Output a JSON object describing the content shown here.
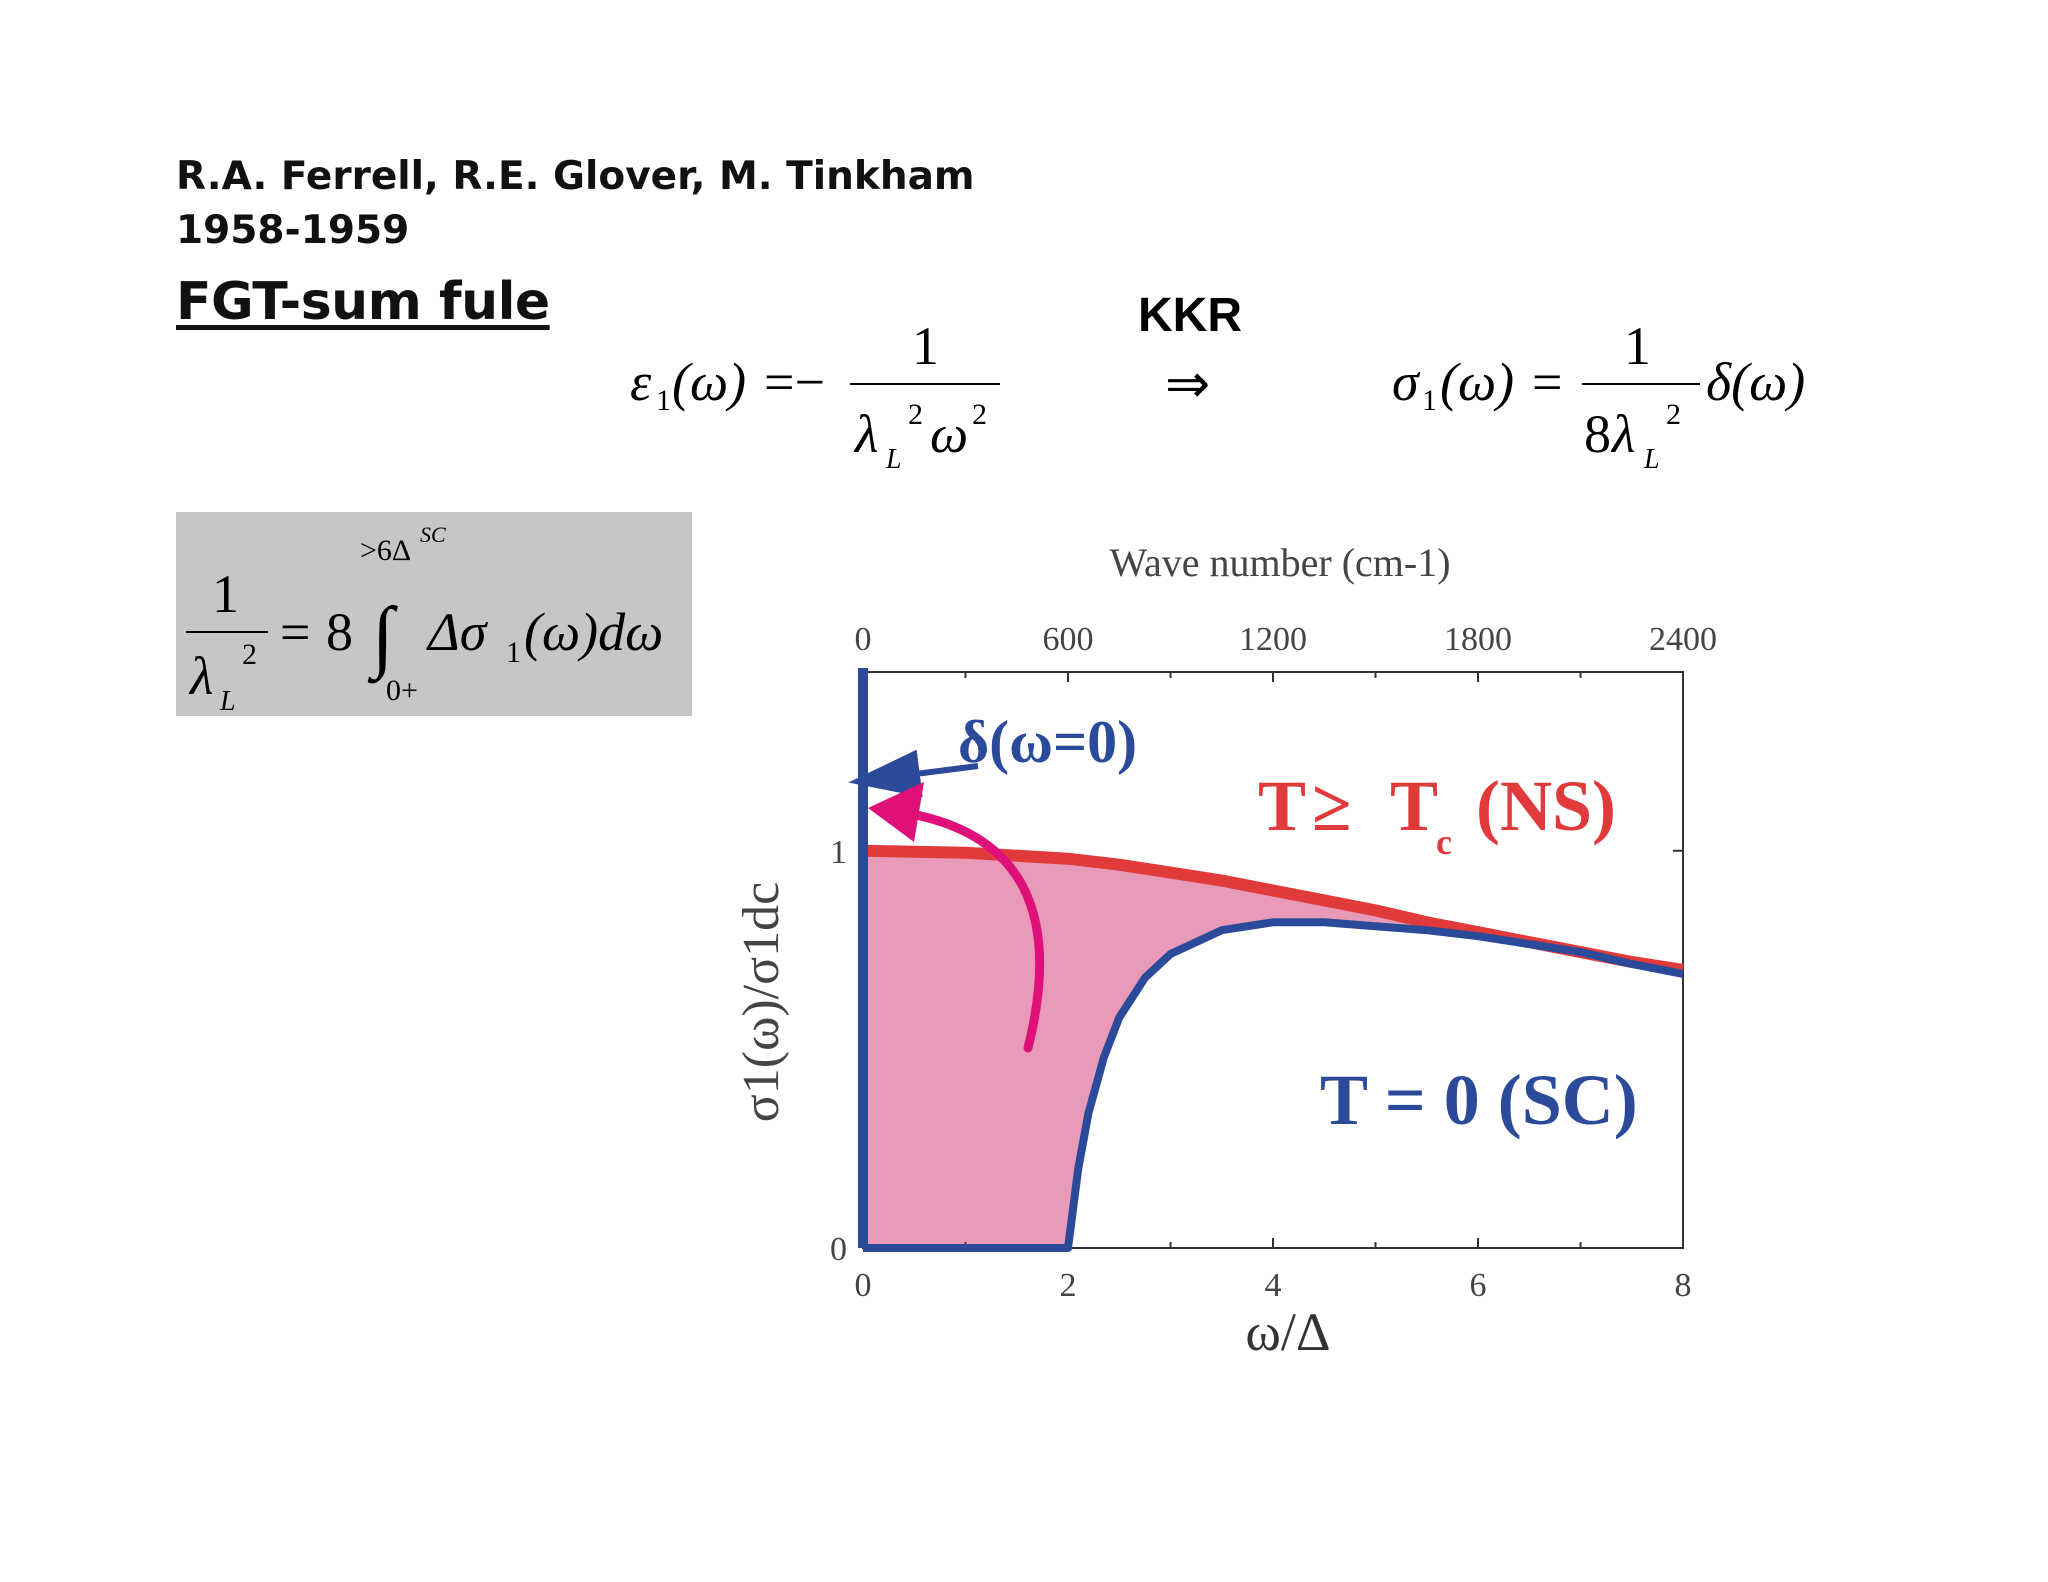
{
  "header": {
    "authors": "R.A. Ferrell, R.E. Glover, M. Tinkham",
    "years": "1958-1959",
    "rule_title": "FGT-sum fule"
  },
  "equations": {
    "kkr_label": "KKR",
    "implies": "⇒",
    "eq1": {
      "lhs_eps": "ε",
      "sub": "1",
      "arg": "(ω)",
      "eq": "=−",
      "num": "1",
      "den_lambda": "λ",
      "den_lambda_sub": "L",
      "den_lambda_sup": "2",
      "den_omega": "ω",
      "den_omega_sup": "2"
    },
    "eq2": {
      "lhs_sigma": "σ",
      "sub": "1",
      "arg": "(ω)",
      "eq": "=",
      "num": "1",
      "den_coef": "8",
      "den_lambda": "λ",
      "den_lambda_sub": "L",
      "den_lambda_sup": "2",
      "delta": "δ(ω)"
    },
    "sum_rule": {
      "num": "1",
      "den_lambda": "λ",
      "den_lambda_sub": "L",
      "den_lambda_sup": "2",
      "eq": "=",
      "coef": "8",
      "upper_limit": ">6Δ",
      "upper_limit_sup": "SC",
      "integral": "∫",
      "lower_limit": "0+",
      "integrand": "Δσ",
      "integrand_sub": "1",
      "integrand_rest": "(ω)dω"
    }
  },
  "colors": {
    "blue": "#2b4a9a",
    "red": "#e03a3a",
    "magenta": "#e0107a",
    "fill": "#e89ab8",
    "box": "#c6c6c6"
  },
  "chart_data": {
    "type": "line",
    "xlabel": "ω/Δ",
    "ylabel": "σ1(ω)/σ1dc",
    "top_axis_label": "Wave number (cm-1)",
    "xlim": [
      0,
      8
    ],
    "ylim": [
      0,
      1.45
    ],
    "x_ticks": [
      "0",
      "2",
      "4",
      "6",
      "8"
    ],
    "x_tick_values": [
      0,
      2,
      4,
      6,
      8
    ],
    "top_ticks": [
      "0",
      "600",
      "1200",
      "1800",
      "2400"
    ],
    "y_ticks": [
      "0",
      "1"
    ],
    "y_tick_values": [
      0,
      1
    ],
    "series": [
      {
        "name": "T ≥ Tc (NS)",
        "color": "#e03a3a",
        "x": [
          0,
          1,
          2,
          2.5,
          3,
          3.5,
          4,
          4.5,
          5,
          5.5,
          6,
          6.5,
          7,
          7.5,
          8
        ],
        "y": [
          1.0,
          0.995,
          0.98,
          0.965,
          0.945,
          0.925,
          0.9,
          0.875,
          0.85,
          0.82,
          0.795,
          0.77,
          0.745,
          0.72,
          0.7
        ]
      },
      {
        "name": "T = 0 (SC)",
        "color": "#2b4a9a",
        "x": [
          0,
          2,
          2.1,
          2.2,
          2.35,
          2.5,
          2.75,
          3,
          3.5,
          4,
          4.5,
          5,
          5.5,
          6,
          6.5,
          7,
          7.5,
          8
        ],
        "y": [
          0,
          0,
          0.2,
          0.34,
          0.48,
          0.58,
          0.68,
          0.74,
          0.8,
          0.82,
          0.82,
          0.81,
          0.8,
          0.785,
          0.765,
          0.745,
          0.715,
          0.69
        ]
      }
    ],
    "delta_spike": {
      "x": 0,
      "label": "δ(ω=0)"
    },
    "annotations": {
      "ns_label_main": "T",
      "ns_label_ge": "≥",
      "ns_label_T": "T",
      "ns_label_sub": "c",
      "ns_label_rest": "(NS)",
      "sc_label": "T = 0 (SC)"
    }
  }
}
